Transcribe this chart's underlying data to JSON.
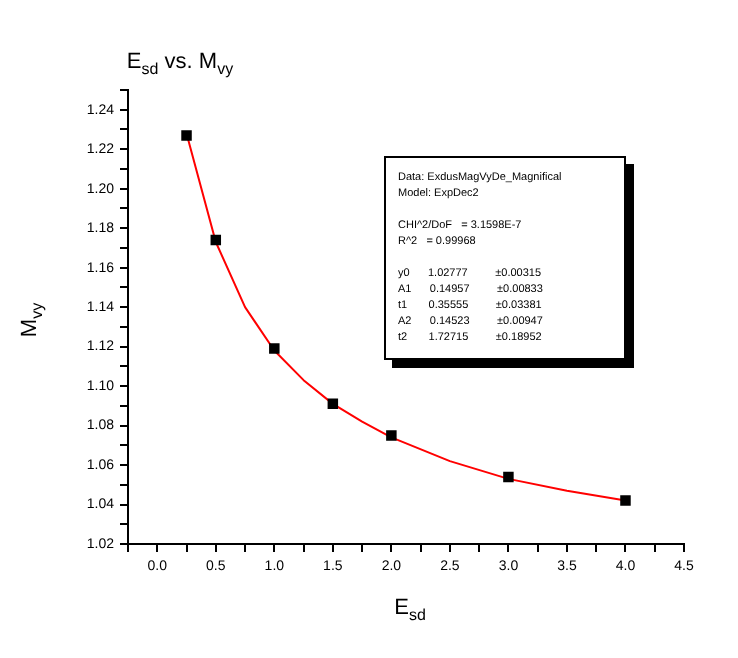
{
  "chart_data": {
    "type": "scatter",
    "title": "E$_{sd}$ vs. M$_{vy}$",
    "xlabel": "E$_{sd}$",
    "ylabel": "M$_{vy}$",
    "series": [
      {
        "type": "scatter",
        "color": "#000000",
        "marker": "square",
        "x": [
          0.25,
          0.5,
          1,
          1.5,
          2,
          3,
          4
        ],
        "values": [
          1.227,
          1.174,
          1.119,
          1.091,
          1.075,
          1.054,
          1.042
        ]
      },
      {
        "type": "line",
        "color": "#ff0000",
        "marker": "none",
        "line_style": "solid",
        "x": [
          0.25,
          0.5,
          0.75,
          1,
          1.25,
          1.5,
          1.75,
          2,
          2.5,
          3,
          3.5,
          4
        ],
        "values": [
          1.228,
          1.173,
          1.14,
          1.118,
          1.103,
          1.091,
          1.082,
          1.074,
          1.062,
          1.053,
          1.047,
          1.042
        ]
      }
    ],
    "xlim": [
      -0.25,
      4.5
    ],
    "xticks": [
      {
        "value": -0.25,
        "label": null
      },
      {
        "value": 0,
        "label": "0.0"
      },
      {
        "value": 0.25,
        "label": null
      },
      0.5,
      {
        "value": 0.75,
        "label": null
      },
      {
        "value": 1,
        "label": "1.0"
      },
      {
        "value": 1.25,
        "label": null
      },
      1.5,
      {
        "value": 1.75,
        "label": null
      },
      {
        "value": 2,
        "label": "2.0"
      },
      {
        "value": 2.25,
        "label": null
      },
      2.5,
      {
        "value": 2.75,
        "label": null
      },
      {
        "value": 3,
        "label": "3.0"
      },
      {
        "value": 3.25,
        "label": null
      },
      3.5,
      {
        "value": 3.75,
        "label": null
      },
      {
        "value": 4,
        "label": "4.0"
      },
      {
        "value": 4.25,
        "label": null
      },
      4.5
    ],
    "ylim": [
      1.02,
      1.25
    ],
    "yticks": [
      1.02,
      {
        "value": 1.03,
        "label": null
      },
      1.04,
      {
        "value": 1.05,
        "label": null
      },
      1.06,
      {
        "value": 1.07,
        "label": null
      },
      1.08,
      {
        "value": 1.09,
        "label": null
      },
      {
        "value": 1.1,
        "label": "1.10"
      },
      {
        "value": 1.11,
        "label": null
      },
      1.12,
      {
        "value": 1.13,
        "label": null
      },
      1.14,
      {
        "value": 1.15,
        "label": null
      },
      1.16,
      {
        "value": 1.17,
        "label": null
      },
      1.18,
      {
        "value": 1.19,
        "label": null
      },
      {
        "value": 1.2,
        "label": "1.20"
      },
      {
        "value": 1.21,
        "label": null
      },
      1.22,
      {
        "value": 1.23,
        "label": null
      },
      1.24,
      {
        "value": 1.25,
        "label": null
      }
    ],
    "grid": false,
    "legend": false,
    "annotations": [
      "Data: ExdusMagVyDe_Magnifical",
      "Model: ExpDec2",
      "CHI^2/DoF   = 3.1598E-7",
      "R^2   = 0.99968",
      "y0      1.02777         ±0.00315",
      "A1      0.14957         ±0.00833",
      "t1       0.35555         ±0.03381",
      "A2      0.14523         ±0.00947",
      "t2       1.72715         ±0.18952"
    ]
  }
}
